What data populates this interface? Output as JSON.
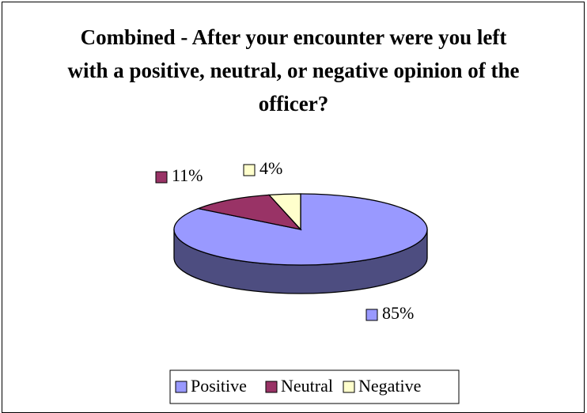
{
  "chart_data": {
    "type": "pie",
    "title": "Combined - After your encounter were you left with a positive, neutral, or negative opinion of the officer?",
    "categories": [
      "Positive",
      "Neutral",
      "Negative"
    ],
    "values": [
      85,
      11,
      4
    ],
    "value_labels": [
      "85%",
      "11%",
      "4%"
    ],
    "colors": [
      "#9999ff",
      "#993366",
      "#ffffcc"
    ],
    "legend": "bottom"
  }
}
